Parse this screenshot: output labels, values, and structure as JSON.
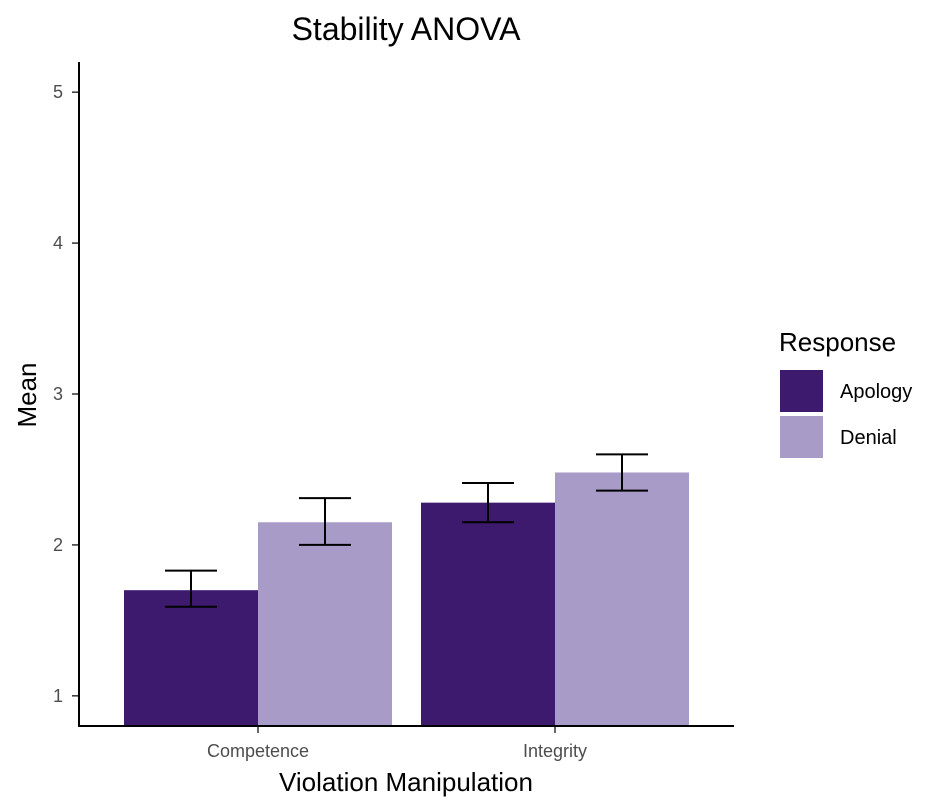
{
  "chart_data": {
    "type": "bar",
    "title": "Stability ANOVA",
    "xlabel": "Violation Manipulation",
    "ylabel": "Mean",
    "categories": [
      "Competence",
      "Integrity"
    ],
    "series": [
      {
        "name": "Apology",
        "color": "#3d1a6e",
        "values": [
          1.7,
          2.28
        ],
        "error_low": [
          1.59,
          2.15
        ],
        "error_high": [
          1.83,
          2.41
        ]
      },
      {
        "name": "Denial",
        "color": "#a89bc8",
        "values": [
          2.15,
          2.48
        ],
        "error_low": [
          2.0,
          2.36
        ],
        "error_high": [
          2.31,
          2.6
        ]
      }
    ],
    "yticks": [
      "1",
      "2",
      "3",
      "4",
      "5"
    ],
    "ylim": [
      0.8,
      5.2
    ],
    "bar_baseline": 0.8,
    "legend": {
      "title": "Response",
      "placement": "right"
    },
    "grid": false
  }
}
